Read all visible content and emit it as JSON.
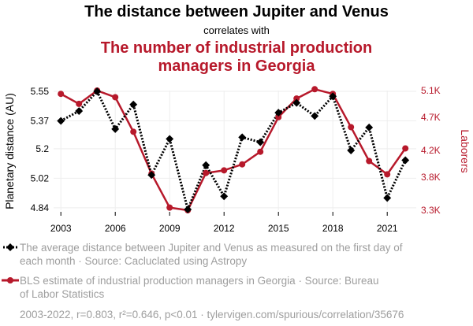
{
  "chart_data": {
    "type": "line",
    "title": "The distance between Jupiter and Venus",
    "subtitle": "correlates with",
    "title2_lines": [
      "The number of industrial production",
      "managers in Georgia"
    ],
    "x": [
      2003,
      2004,
      2005,
      2006,
      2007,
      2008,
      2009,
      2010,
      2011,
      2012,
      2013,
      2014,
      2015,
      2016,
      2017,
      2018,
      2019,
      2020,
      2021,
      2022
    ],
    "x_ticks": [
      "2003",
      "2006",
      "2009",
      "2012",
      "2015",
      "2018",
      "2021"
    ],
    "xlim": [
      2002.6,
      2022.6
    ],
    "y_left": {
      "label": "Planetary distance (AU)",
      "ticks": [
        "4.84",
        "5.02",
        "5.2",
        "5.37",
        "5.55"
      ],
      "tick_values": [
        4.84,
        5.02,
        5.2,
        5.37,
        5.55
      ],
      "ylim": [
        4.825,
        5.555
      ]
    },
    "y_right": {
      "label": "Laborers",
      "ticks": [
        "3.3K",
        "3.8K",
        "4.2K",
        "4.7K",
        "5.1K"
      ],
      "tick_values": [
        3300,
        3800,
        4200,
        4700,
        5100
      ],
      "ylim": [
        3300,
        5100
      ]
    },
    "series": [
      {
        "axis": "left",
        "style": "dotted",
        "marker": "diamond",
        "color": "#000000",
        "values": [
          5.37,
          5.43,
          5.55,
          5.32,
          5.47,
          5.04,
          5.26,
          4.83,
          5.1,
          4.91,
          5.27,
          5.24,
          5.42,
          5.48,
          5.4,
          5.52,
          5.19,
          5.33,
          4.9,
          5.13
        ]
      },
      {
        "axis": "right",
        "style": "solid",
        "marker": "circle",
        "color": "#b7192b",
        "values": [
          5050,
          4900,
          5100,
          5000,
          4480,
          3850,
          3340,
          3300,
          3860,
          3900,
          3990,
          4180,
          4700,
          4980,
          5120,
          5050,
          4550,
          4040,
          3840,
          4230
        ]
      }
    ],
    "legend": [
      {
        "lines": [
          "The average distance between Jupiter and Venus as measured on the first day of",
          "each month · Source: Cacluclated using Astropy"
        ],
        "color": "#000000",
        "style": "dotted"
      },
      {
        "lines": [
          "BLS estimate of industrial production managers in Georgia · Source: Bureau",
          "of Labor Statistics"
        ],
        "color": "#b7192b",
        "style": "solid"
      }
    ],
    "footer": "2003-2022, r=0.803, r²=0.646, p<0.01 · tylervigen.com/spurious/correlation/35676",
    "colors": {
      "accent": "#b7192b",
      "legend_text": "#9e9e9e",
      "grid": "#eeeeee"
    },
    "grid": true,
    "legend_position": "bottom"
  }
}
